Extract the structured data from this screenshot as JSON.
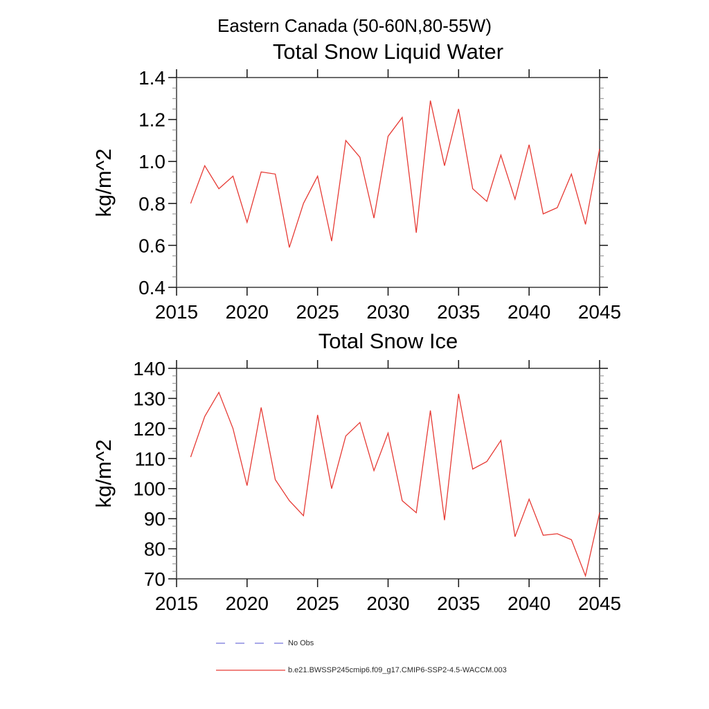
{
  "header": {
    "region_title": "Eastern Canada (50-60N,80-55W)"
  },
  "colors": {
    "series_red": "#e63a34",
    "no_obs_blue": "#7373d9",
    "frame_gray": "#6b6b6b",
    "major_tick": "#111111",
    "minor_tick": "#8a8a8a",
    "text": "#000000"
  },
  "legend": {
    "position": "bottom-left",
    "entries": [
      {
        "label": "No Obs",
        "color": "#7373d9",
        "style": "dashed"
      },
      {
        "label": "b.e21.BWSSP245cmip6.f09_g17.CMIP6-SSP2-4.5-WACCM.003",
        "color": "#e63a34",
        "style": "solid"
      }
    ]
  },
  "chart_data": [
    {
      "type": "line",
      "title": "Total Snow Liquid Water",
      "xlabel": "",
      "ylabel": "kg/m^2",
      "xlim": [
        2015,
        2045
      ],
      "ylim": [
        0.4,
        1.4
      ],
      "x_ticks": [
        2015,
        2020,
        2025,
        2030,
        2035,
        2040,
        2045
      ],
      "y_ticks": [
        0.4,
        0.6,
        0.8,
        1.0,
        1.2,
        1.4
      ],
      "y_minor_step": 0.05,
      "grid": false,
      "x": [
        2016,
        2017,
        2018,
        2019,
        2020,
        2021,
        2022,
        2023,
        2024,
        2025,
        2026,
        2027,
        2028,
        2029,
        2030,
        2031,
        2032,
        2033,
        2034,
        2035,
        2036,
        2037,
        2038,
        2039,
        2040,
        2041,
        2042,
        2043,
        2044,
        2045
      ],
      "series": [
        {
          "name": "b.e21.BWSSP245cmip6.f09_g17.CMIP6-SSP2-4.5-WACCM.003",
          "values": [
            0.8,
            0.98,
            0.87,
            0.93,
            0.71,
            0.95,
            0.94,
            0.59,
            0.8,
            0.93,
            0.62,
            1.1,
            1.02,
            0.73,
            1.12,
            1.21,
            0.66,
            1.29,
            0.98,
            1.25,
            0.87,
            0.81,
            1.03,
            0.82,
            1.08,
            0.75,
            0.78,
            0.94,
            0.7,
            1.06
          ]
        }
      ]
    },
    {
      "type": "line",
      "title": "Total Snow Ice",
      "xlabel": "",
      "ylabel": "kg/m^2",
      "xlim": [
        2015,
        2045
      ],
      "ylim": [
        70,
        140
      ],
      "x_ticks": [
        2015,
        2020,
        2025,
        2030,
        2035,
        2040,
        2045
      ],
      "y_ticks": [
        70,
        80,
        90,
        100,
        110,
        120,
        130,
        140
      ],
      "y_minor_step": 2.5,
      "grid": false,
      "x": [
        2016,
        2017,
        2018,
        2019,
        2020,
        2021,
        2022,
        2023,
        2024,
        2025,
        2026,
        2027,
        2028,
        2029,
        2030,
        2031,
        2032,
        2033,
        2034,
        2035,
        2036,
        2037,
        2038,
        2039,
        2040,
        2041,
        2042,
        2043,
        2044,
        2045
      ],
      "series": [
        {
          "name": "b.e21.BWSSP245cmip6.f09_g17.CMIP6-SSP2-4.5-WACCM.003",
          "values": [
            110.5,
            124,
            132,
            120,
            101,
            127,
            103,
            96,
            91,
            124.5,
            100,
            117.5,
            122,
            106,
            118.5,
            96,
            92,
            126,
            89.5,
            131.5,
            106.5,
            109,
            116,
            84,
            96.5,
            84.5,
            85,
            83,
            71,
            92
          ]
        }
      ]
    }
  ]
}
